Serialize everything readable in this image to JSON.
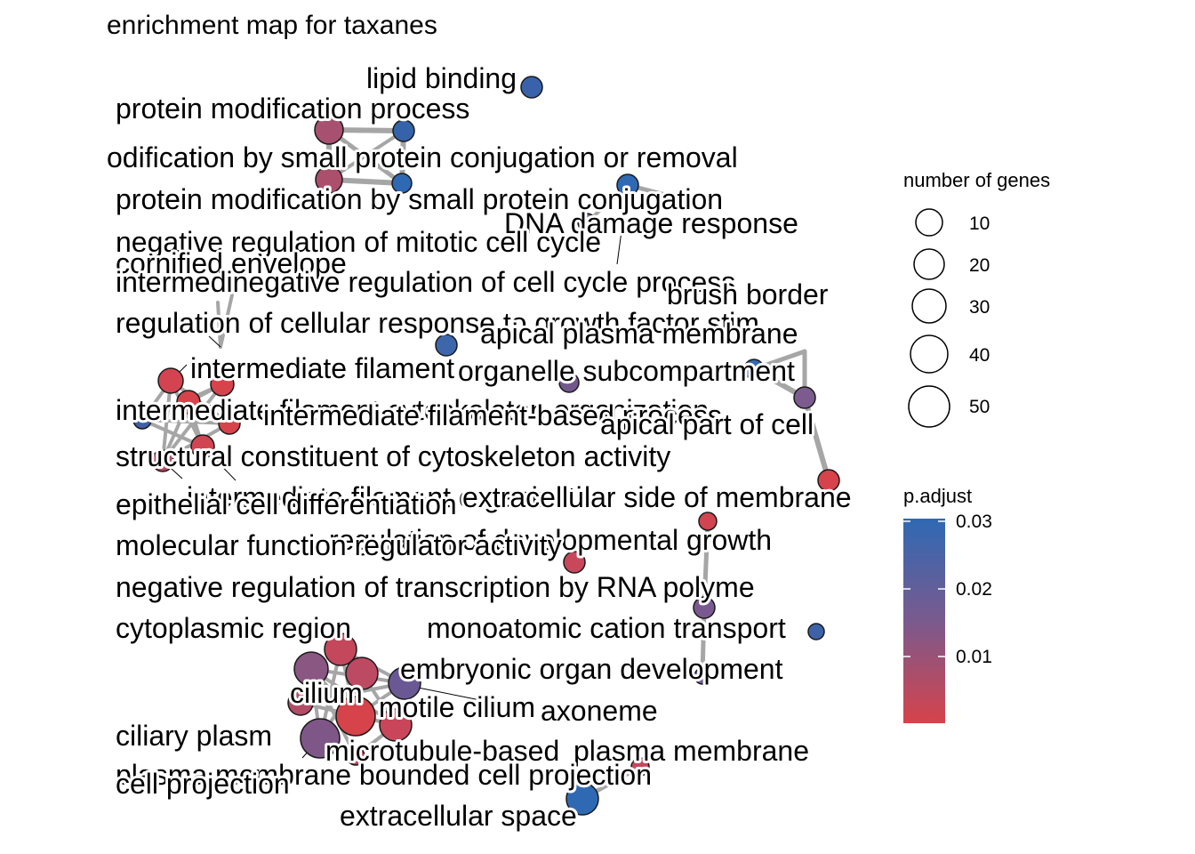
{
  "title": "enrichment map for taxanes",
  "colors": {
    "low_p": "#d6434b",
    "high_p": "#2f69b4",
    "edge": "#a6a6a6"
  },
  "size_legend": {
    "title": "number of genes",
    "entries": [
      "10",
      "20",
      "30",
      "40",
      "50"
    ]
  },
  "color_legend": {
    "title": "p.adjust",
    "ticks": [
      "0.03",
      "0.02",
      "0.01"
    ]
  },
  "labels": [
    "lipid binding",
    "protein modification process",
    "odification by small protein conjugation or removal",
    "protein modification by small protein conjugation",
    "DNA damage response",
    "negative regulation of mitotic cell cycle",
    "cornified envelope",
    "intermedinegative regulation of cell cycle process",
    "brush border",
    "regulation of cellular response to growth factor stim",
    "apical plasma membrane",
    "intermediate filament",
    "organelle subcompartment",
    "intermediate filament cytoskeleton organization",
    "intermediate filament-based process",
    "apical part of cell",
    "structural constituent of cytoskeleton activity",
    "intermediate filament organization",
    "extracellular side of membrane",
    "epithelial cell differentiation",
    "regulation of developmental growth",
    "molecular function regulator activity",
    "negative regulation of transcription by RNA polyme",
    "cytoplasmic region",
    "monoatomic cation transport",
    "embryonic organ development",
    "cilium",
    "motile cilium",
    "axoneme",
    "ciliary plasm",
    "microtubule-based",
    "plasma membrane",
    "plasma membrane bounded cell projection",
    "cell projection",
    "extracellular space"
  ]
}
